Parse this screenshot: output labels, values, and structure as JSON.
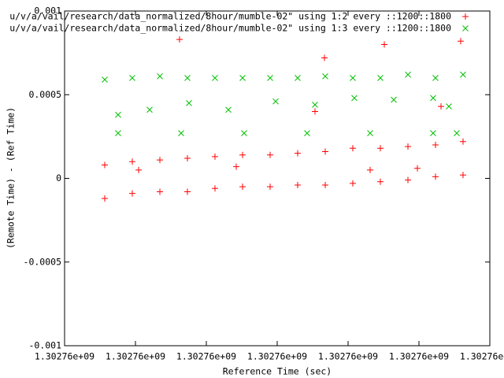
{
  "chart_data": {
    "type": "scatter",
    "x_label": "Reference Time (sec)",
    "y_label": "(Remote Time) - (Ref Time)",
    "xlim": [
      1302755500,
      1302764500
    ],
    "xticks": [
      {
        "value": 1302755500,
        "label": "1.30276e+09"
      },
      {
        "value": 1302757000,
        "label": "1.30276e+09"
      },
      {
        "value": 1302758500,
        "label": "1.30276e+09"
      },
      {
        "value": 1302760000,
        "label": "1.30276e+09"
      },
      {
        "value": 1302761500,
        "label": "1.30276e+09"
      },
      {
        "value": 1302763000,
        "label": "1.30276e+09"
      },
      {
        "value": 1302764500,
        "label": "1.30276e+09"
      }
    ],
    "ylim": [
      -0.001,
      0.001
    ],
    "yticks": [
      -0.001,
      -0.0005,
      0,
      0.0005,
      0.001
    ],
    "grid": false,
    "legend": "top-right",
    "series": [
      {
        "name": "u/v/a/vail/research/data_normalized/8hour/mumble-02\" using 1:2 every ::1200::1800",
        "color": "#ff0000",
        "marker": "plus",
        "x": [
          1302756350,
          1302756933,
          1302757517,
          1302758100,
          1302758683,
          1302759267,
          1302759850,
          1302760433,
          1302761017,
          1302761600,
          1302762183,
          1302762767,
          1302763350,
          1302763933,
          1302756350,
          1302756933,
          1302757517,
          1302758100,
          1302758683,
          1302759267,
          1302759850,
          1302760433,
          1302761017,
          1302761600,
          1302762183,
          1302762767,
          1302763350,
          1302763933,
          1302757933,
          1302761000,
          1302762267,
          1302763883,
          1302757067,
          1302759133,
          1302761967,
          1302762967,
          1302760800,
          1302763467
        ],
        "values": [
          -0.00012,
          -9e-05,
          -8e-05,
          -8e-05,
          -6e-05,
          -5e-05,
          -5e-05,
          -4e-05,
          -4e-05,
          -3e-05,
          -2e-05,
          -1e-05,
          1e-05,
          2e-05,
          8e-05,
          0.0001,
          0.00011,
          0.00012,
          0.00013,
          0.00014,
          0.00014,
          0.00015,
          0.00016,
          0.00018,
          0.00018,
          0.00019,
          0.0002,
          0.00022,
          0.00083,
          0.00072,
          0.0008,
          0.00082,
          5e-05,
          7e-05,
          5e-05,
          6e-05,
          0.0004,
          0.00043
        ]
      },
      {
        "name": "u/v/a/vail/research/data_normalized/8hour/mumble-02\" using 1:3 every ::1200::1800",
        "color": "#00c000",
        "marker": "cross",
        "x": [
          1302756350,
          1302756933,
          1302757517,
          1302758100,
          1302758683,
          1302759267,
          1302759850,
          1302760433,
          1302761017,
          1302761600,
          1302762183,
          1302762767,
          1302763350,
          1302763933,
          1302756633,
          1302757300,
          1302758133,
          1302758967,
          1302759967,
          1302760800,
          1302761633,
          1302762467,
          1302763300,
          1302763633,
          1302756633,
          1302757967,
          1302759300,
          1302760633,
          1302761967,
          1302763300,
          1302763800
        ],
        "values": [
          0.00059,
          0.0006,
          0.00061,
          0.0006,
          0.0006,
          0.0006,
          0.0006,
          0.0006,
          0.00061,
          0.0006,
          0.0006,
          0.00062,
          0.0006,
          0.00062,
          0.00038,
          0.00041,
          0.00045,
          0.00041,
          0.00046,
          0.00044,
          0.00048,
          0.00047,
          0.00048,
          0.00043,
          0.00027,
          0.00027,
          0.00027,
          0.00027,
          0.00027,
          0.00027,
          0.00027
        ]
      }
    ]
  }
}
